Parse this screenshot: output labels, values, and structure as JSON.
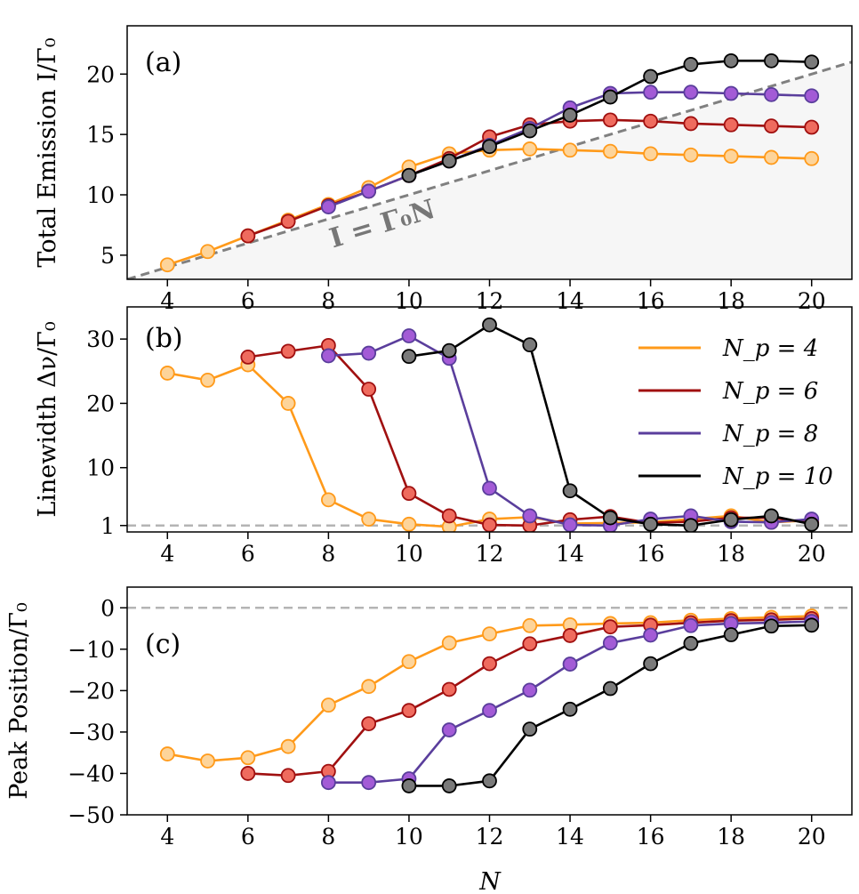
{
  "chart_data": [
    {
      "panel": "(a)",
      "type": "line",
      "ylabel": "Total Emission I/Γ₀",
      "xlabel": "",
      "xlim": [
        3,
        21
      ],
      "ylim": [
        3,
        24
      ],
      "xticks": [
        4,
        6,
        8,
        10,
        12,
        14,
        16,
        18,
        20
      ],
      "yticks": [
        5,
        10,
        15,
        20
      ],
      "reference": {
        "label": "I = Γ₀N",
        "slope": 1,
        "intercept": 0,
        "style": "dashed",
        "color": "#808080",
        "shaded_below": true
      },
      "series": [
        {
          "name": "N_p = 4",
          "color": "#ff9a1a",
          "fill": "#fdd49a",
          "x": [
            4,
            5,
            6,
            7,
            8,
            9,
            10,
            11,
            12,
            13,
            14,
            15,
            16,
            17,
            18,
            19,
            20
          ],
          "y": [
            4.2,
            5.3,
            6.6,
            7.9,
            9.2,
            10.6,
            12.3,
            13.4,
            13.7,
            13.8,
            13.7,
            13.6,
            13.4,
            13.3,
            13.2,
            13.1,
            13.0
          ]
        },
        {
          "name": "N_p = 6",
          "color": "#a01010",
          "fill": "#ef6b5e",
          "x": [
            6,
            7,
            8,
            9,
            10,
            11,
            12,
            13,
            14,
            15,
            16,
            17,
            18,
            19,
            20
          ],
          "y": [
            6.6,
            7.8,
            9.1,
            10.3,
            11.6,
            13.0,
            14.8,
            15.8,
            16.1,
            16.2,
            16.1,
            15.9,
            15.8,
            15.7,
            15.6
          ]
        },
        {
          "name": "N_p = 8",
          "color": "#5a3e9c",
          "fill": "#a35bd6",
          "x": [
            8,
            9,
            10,
            11,
            12,
            13,
            14,
            15,
            16,
            17,
            18,
            19,
            20
          ],
          "y": [
            9.0,
            10.3,
            11.6,
            12.8,
            14.1,
            15.5,
            17.2,
            18.4,
            18.5,
            18.5,
            18.4,
            18.3,
            18.2
          ]
        },
        {
          "name": "N_p = 10",
          "color": "#000000",
          "fill": "#7a7a7a",
          "x": [
            10,
            11,
            12,
            13,
            14,
            15,
            16,
            17,
            18,
            19,
            20
          ],
          "y": [
            11.6,
            12.8,
            14.0,
            15.3,
            16.6,
            18.1,
            19.8,
            20.8,
            21.1,
            21.1,
            21.0
          ]
        }
      ]
    },
    {
      "panel": "(b)",
      "type": "line",
      "ylabel": "Linewidth Δν/Γ₀",
      "xlabel": "",
      "xlim": [
        3,
        21
      ],
      "ylim": [
        0,
        35
      ],
      "xticks": [
        4,
        6,
        8,
        10,
        12,
        14,
        16,
        18,
        20
      ],
      "yticks": [
        1,
        10,
        20,
        30
      ],
      "reference": {
        "y": 1,
        "style": "dashed",
        "color": "#b4b4b4"
      },
      "legend": {
        "placement": "top-right",
        "entries": [
          "N_p = 4",
          "N_p = 6",
          "N_p = 8",
          "N_p = 10"
        ]
      },
      "series": [
        {
          "name": "N_p = 4",
          "color": "#ff9a1a",
          "fill": "#fdd49a",
          "x": [
            4,
            5,
            6,
            7,
            8,
            9,
            10,
            11,
            12,
            13,
            14,
            15,
            16,
            17,
            18,
            19,
            20
          ],
          "y": [
            24.7,
            23.6,
            26.0,
            20.0,
            5.0,
            2.0,
            1.2,
            0.8,
            2.0,
            2.3,
            1.3,
            1.4,
            1.5,
            2.0,
            2.5,
            1.5,
            1.8
          ]
        },
        {
          "name": "N_p = 6",
          "color": "#a01010",
          "fill": "#ef6b5e",
          "x": [
            6,
            7,
            8,
            9,
            10,
            11,
            12,
            13,
            14,
            15,
            16,
            17,
            18,
            19,
            20
          ],
          "y": [
            27.2,
            28.1,
            29.0,
            22.2,
            6.0,
            2.5,
            1.1,
            1.0,
            1.9,
            2.4,
            1.4,
            1.6,
            2.2,
            2.2,
            1.4
          ]
        },
        {
          "name": "N_p = 8",
          "color": "#5a3e9c",
          "fill": "#a35bd6",
          "x": [
            8,
            9,
            10,
            11,
            12,
            13,
            14,
            15,
            16,
            17,
            18,
            19,
            20
          ],
          "y": [
            27.4,
            27.8,
            30.5,
            27.0,
            6.8,
            2.5,
            1.1,
            1.0,
            2.0,
            2.5,
            1.6,
            1.5,
            2.0
          ]
        },
        {
          "name": "N_p = 10",
          "color": "#000000",
          "fill": "#7a7a7a",
          "x": [
            10,
            11,
            12,
            13,
            14,
            15,
            16,
            17,
            18,
            19,
            20
          ],
          "y": [
            27.3,
            28.2,
            32.2,
            29.1,
            6.4,
            2.2,
            1.2,
            1.0,
            1.9,
            2.5,
            1.2
          ]
        }
      ]
    },
    {
      "panel": "(c)",
      "type": "line",
      "ylabel": "Peak Position/Γ₀",
      "xlabel": "N",
      "xlim": [
        3,
        21
      ],
      "ylim": [
        -50,
        5
      ],
      "xticks": [
        4,
        6,
        8,
        10,
        12,
        14,
        16,
        18,
        20
      ],
      "yticks": [
        -50,
        -40,
        -30,
        -20,
        -10,
        0
      ],
      "reference": {
        "y": 0,
        "style": "dashed",
        "color": "#b4b4b4"
      },
      "series": [
        {
          "name": "N_p = 4",
          "color": "#ff9a1a",
          "fill": "#fdd49a",
          "x": [
            4,
            5,
            6,
            7,
            8,
            9,
            10,
            11,
            12,
            13,
            14,
            15,
            16,
            17,
            18,
            19,
            20
          ],
          "y": [
            -35.3,
            -37.0,
            -36.2,
            -33.5,
            -23.5,
            -19.0,
            -13.0,
            -8.5,
            -6.3,
            -4.3,
            -4.1,
            -3.8,
            -3.6,
            -3.0,
            -2.6,
            -2.3,
            -2.0
          ]
        },
        {
          "name": "N_p = 6",
          "color": "#a01010",
          "fill": "#ef6b5e",
          "x": [
            6,
            7,
            8,
            9,
            10,
            11,
            12,
            13,
            14,
            15,
            16,
            17,
            18,
            19,
            20
          ],
          "y": [
            -40.0,
            -40.5,
            -39.5,
            -28.0,
            -24.8,
            -19.7,
            -13.5,
            -8.7,
            -6.7,
            -4.6,
            -4.2,
            -3.6,
            -3.1,
            -2.9,
            -2.6
          ]
        },
        {
          "name": "N_p = 8",
          "color": "#5a3e9c",
          "fill": "#a35bd6",
          "x": [
            8,
            9,
            10,
            11,
            12,
            13,
            14,
            15,
            16,
            17,
            18,
            19,
            20
          ],
          "y": [
            -42.2,
            -42.2,
            -41.3,
            -29.5,
            -24.8,
            -19.9,
            -13.6,
            -8.5,
            -6.6,
            -4.3,
            -3.8,
            -3.6,
            -3.3
          ]
        },
        {
          "name": "N_p = 10",
          "color": "#000000",
          "fill": "#7a7a7a",
          "x": [
            10,
            11,
            12,
            13,
            14,
            15,
            16,
            17,
            18,
            19,
            20
          ],
          "y": [
            -43.0,
            -43.0,
            -41.8,
            -29.3,
            -24.5,
            -19.5,
            -13.5,
            -8.6,
            -6.5,
            -4.4,
            -4.2
          ]
        }
      ]
    }
  ]
}
